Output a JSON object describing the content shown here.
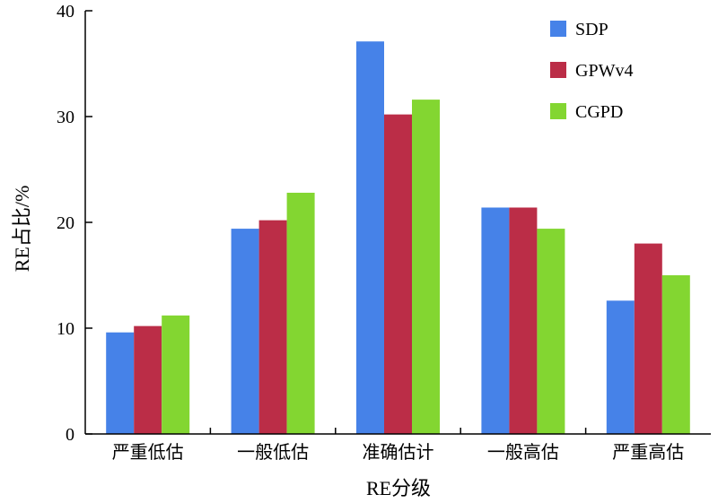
{
  "chart_data": {
    "type": "bar",
    "title": "",
    "xlabel": "RE分级",
    "ylabel": "RE占比/%",
    "categories": [
      "严重低估",
      "一般低估",
      "准确估计",
      "一般高估",
      "严重高估"
    ],
    "series": [
      {
        "name": "SDP",
        "color": "#4682e8",
        "values": [
          9.6,
          19.4,
          37.1,
          21.4,
          12.6
        ]
      },
      {
        "name": "GPWv4",
        "color": "#bb2d47",
        "values": [
          10.2,
          20.2,
          30.2,
          21.4,
          18.0
        ]
      },
      {
        "name": "CGPD",
        "color": "#83d631",
        "values": [
          11.2,
          22.8,
          31.6,
          19.4,
          15.0
        ]
      }
    ],
    "ylim": [
      0,
      40
    ],
    "yticks": [
      0,
      10,
      20,
      30,
      40
    ],
    "grid": false,
    "legend_position": "top-right"
  }
}
